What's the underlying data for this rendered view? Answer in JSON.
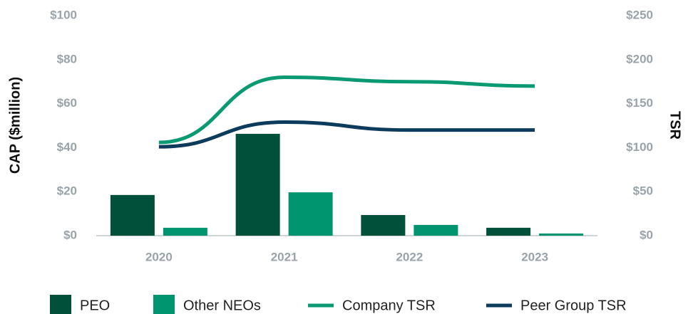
{
  "chart_data": {
    "type": "bar",
    "categories": [
      "2020",
      "2021",
      "2022",
      "2023"
    ],
    "ylabel": "CAP ($million)",
    "y2label": "TSR",
    "ylim": [
      0,
      100
    ],
    "yticks": [
      {
        "value": 0,
        "label": "$0"
      },
      {
        "value": 20,
        "label": "$20"
      },
      {
        "value": 40,
        "label": "$40"
      },
      {
        "value": 60,
        "label": "$60"
      },
      {
        "value": 80,
        "label": "$80"
      },
      {
        "value": 100,
        "label": "$100"
      }
    ],
    "y2lim": [
      0,
      250
    ],
    "y2ticks": [
      {
        "value": 0,
        "label": "$0"
      },
      {
        "value": 50,
        "label": "$50"
      },
      {
        "value": 100,
        "label": "$100"
      },
      {
        "value": 150,
        "label": "$150"
      },
      {
        "value": 200,
        "label": "$200"
      },
      {
        "value": 250,
        "label": "$250"
      }
    ],
    "legend": "bottom",
    "series": [
      {
        "name": "PEO",
        "type": "bar",
        "color": "#00503a",
        "values": [
          18.5,
          46.3,
          9.4,
          3.6
        ]
      },
      {
        "name": "Other NEOs",
        "type": "bar",
        "color": "#00956f",
        "values": [
          3.6,
          19.7,
          4.9,
          1.0
        ]
      },
      {
        "name": "Company TSR",
        "type": "line",
        "axis": "y2",
        "color": "#0a9a72",
        "values": [
          106,
          180,
          175,
          170
        ]
      },
      {
        "name": "Peer Group TSR",
        "type": "line",
        "axis": "y2",
        "color": "#0d3b5c",
        "values": [
          101,
          129,
          120,
          120
        ]
      }
    ]
  }
}
